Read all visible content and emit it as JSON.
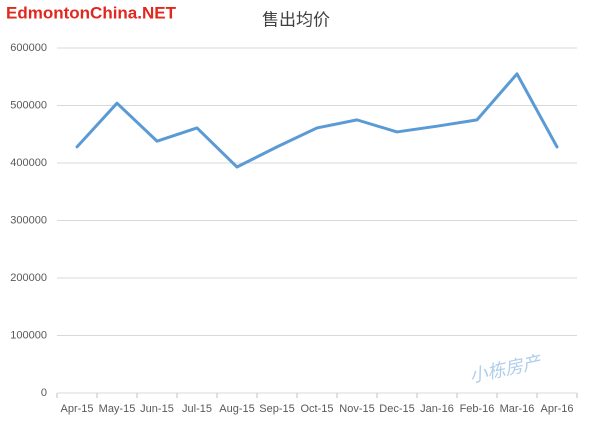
{
  "chart_data": {
    "type": "line",
    "title": "售出均价",
    "categories": [
      "Apr-15",
      "May-15",
      "Jun-15",
      "Jul-15",
      "Aug-15",
      "Sep-15",
      "Oct-15",
      "Nov-15",
      "Dec-15",
      "Jan-16",
      "Feb-16",
      "Mar-16",
      "Apr-16"
    ],
    "values": [
      428000,
      504000,
      438000,
      461000,
      393000,
      428000,
      461000,
      475000,
      454000,
      464000,
      475000,
      555000,
      428000
    ],
    "color": "#5b9bd5",
    "ylim": [
      0,
      600000
    ],
    "yticks": [
      0,
      100000,
      200000,
      300000,
      400000,
      500000,
      600000
    ],
    "grid": true
  },
  "watermarks": [
    "EdmontonChina.NET",
    "小栋房产"
  ]
}
